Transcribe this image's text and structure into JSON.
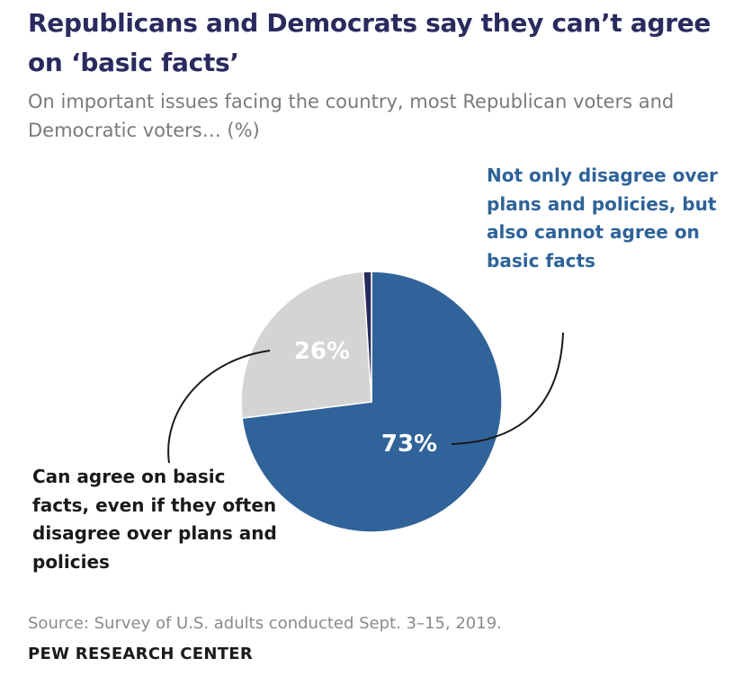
{
  "header": {
    "title": "Republicans and Democrats say they can’t agree on ‘basic facts’",
    "subtitle": "On important issues facing the country, most Republican voters and Democratic voters… (%)"
  },
  "chart_data": {
    "type": "pie",
    "title": "Republicans and Democrats say they can’t agree on ‘basic facts’",
    "subtitle": "On important issues facing the country, most Republican voters and Democratic voters… (%)",
    "start_angle_deg": 0,
    "direction": "clockwise",
    "slices": [
      {
        "label": "Not only disagree over plans and policies, but also cannot agree on basic facts",
        "value": 73,
        "value_label": "73%",
        "color": "#306399"
      },
      {
        "label": "Can agree on basic facts, even if they often disagree over plans and policies",
        "value": 26,
        "value_label": "26%",
        "color": "#d4d4d4"
      },
      {
        "label": "",
        "value": 1,
        "value_label": "",
        "color": "#2b2a5e"
      }
    ]
  },
  "footer": {
    "source": "Source: Survey of U.S. adults conducted Sept. 3–15, 2019.",
    "organization": "PEW RESEARCH CENTER"
  }
}
